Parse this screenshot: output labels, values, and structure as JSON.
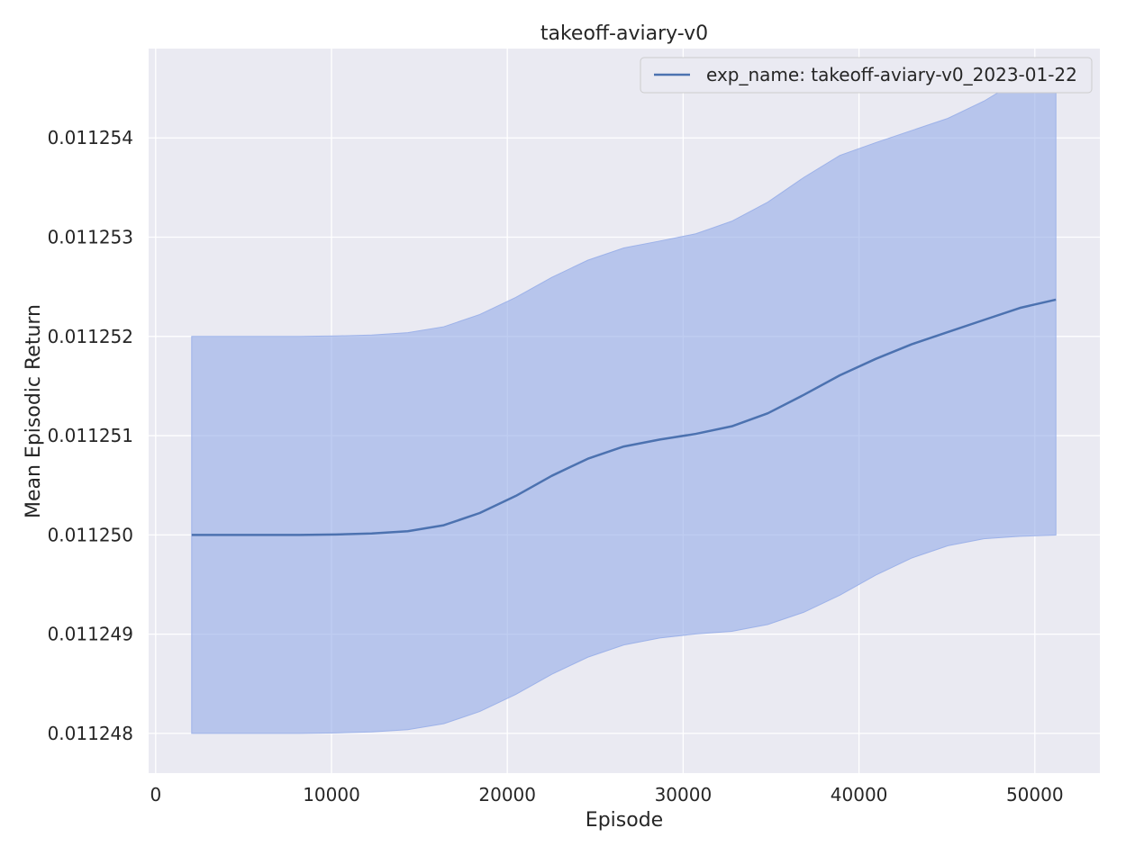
{
  "chart_data": {
    "type": "line",
    "title": "takeoff-aviary-v0",
    "xlabel": "Episode",
    "ylabel": "Mean Episodic Return",
    "xlim": [
      -400,
      53700
    ],
    "ylim": [
      0.0112476,
      0.0112549
    ],
    "xticks": [
      0,
      10000,
      20000,
      30000,
      40000,
      50000
    ],
    "yticks": [
      0.011248,
      0.011249,
      0.01125,
      0.011251,
      0.011252,
      0.011253,
      0.011254
    ],
    "ytick_labels": [
      "0.011248",
      "0.011249",
      "0.011250",
      "0.011251",
      "0.011252",
      "0.011253",
      "0.011254"
    ],
    "grid": true,
    "legend_position": "top-right",
    "colors": {
      "line": "#4c72b0",
      "band": "#98aee8",
      "background": "#eaeaf2",
      "grid": "#ffffff"
    },
    "series": [
      {
        "name": "exp_name: takeoff-aviary-v0_2023-01-22",
        "x": [
          2048,
          4096,
          6144,
          8192,
          10240,
          12288,
          14336,
          16384,
          18432,
          20480,
          22528,
          24576,
          26624,
          28672,
          30720,
          32768,
          34816,
          36864,
          38912,
          40960,
          43008,
          45056,
          47104,
          49152,
          51200
        ],
        "y": [
          0.01125,
          0.01125,
          0.01125,
          0.01125,
          0.0112500045,
          0.0112500144,
          0.0112500375,
          0.0112500973,
          0.0112502207,
          0.0112503927,
          0.0112505954,
          0.0112507676,
          0.011250891,
          0.0112509611,
          0.0112510181,
          0.0112510946,
          0.0112512255,
          0.0112514114,
          0.0112516083,
          0.0112517743,
          0.0112519214,
          0.0112520442,
          0.0112521659,
          0.0112522871,
          0.0112523707
        ],
        "lower": [
          0.011248,
          0.011248,
          0.011248,
          0.011248,
          0.0112480045,
          0.0112480144,
          0.0112480375,
          0.0112480973,
          0.0112482207,
          0.0112483927,
          0.0112485954,
          0.0112487676,
          0.011248891,
          0.0112489611,
          0.0112490023,
          0.0112490283,
          0.0112490973,
          0.0112492207,
          0.0112493927,
          0.0112495954,
          0.0112497676,
          0.011249891,
          0.0112499611,
          0.0112499856,
          0.011249998
        ],
        "upper": [
          0.011252,
          0.011252,
          0.011252,
          0.011252,
          0.0112520045,
          0.0112520144,
          0.0112520375,
          0.0112520973,
          0.0112522207,
          0.0112523927,
          0.0112525954,
          0.0112527676,
          0.011252891,
          0.0112529611,
          0.0112530339,
          0.0112531609,
          0.0112533537,
          0.0112536021,
          0.0112538239,
          0.0112539532,
          0.0112540752,
          0.0112541974,
          0.0112543707,
          0.0112545886,
          0.0112547434
        ]
      }
    ]
  }
}
